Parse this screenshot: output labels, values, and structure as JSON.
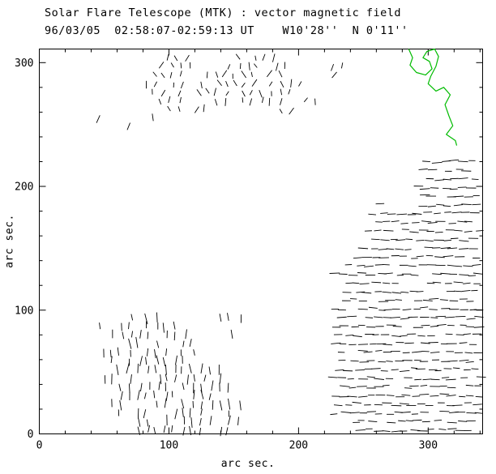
{
  "chart": {
    "title": "Solar Flare Telescope (MTK) : vector magnetic field",
    "subtitle": "96/03/05  02:58:07-02:59:13 UT    W10'28''  N 0'11''",
    "xlabel": "arc sec.",
    "ylabel": "arc sec."
  },
  "chart_data": {
    "type": "quiver",
    "title": "Solar Flare Telescope (MTK) : vector magnetic field",
    "subtitle": "96/03/05  02:58:07-02:59:13 UT    W10'28''  N 0'11''",
    "xlabel": "arc sec.",
    "ylabel": "arc sec.",
    "x_range": [
      0,
      342
    ],
    "y_range": [
      0,
      311
    ],
    "x_ticks": [
      0,
      100,
      200,
      300
    ],
    "y_ticks": [
      0,
      100,
      200,
      300
    ],
    "minor_tick_interval": 20,
    "grid": false,
    "axes_color": "#000000",
    "vector_color": "#000000",
    "contour_color": "#00bb00",
    "clusters": [
      {
        "name": "right-plage-horizontal-field",
        "seed": 42,
        "step": 7,
        "angle": 0,
        "jitter": 7,
        "len_min": 5,
        "len_max": 8,
        "prob": 0.93,
        "rows": [
          {
            "y": 220,
            "runs": [
              [
                300,
                340
              ]
            ]
          },
          {
            "y": 213,
            "runs": [
              [
                296,
                340
              ]
            ]
          },
          {
            "y": 206,
            "runs": [
              [
                300,
                340
              ]
            ]
          },
          {
            "y": 199,
            "runs": [
              [
                292,
                340
              ]
            ]
          },
          {
            "y": 192,
            "runs": [
              [
                296,
                340
              ]
            ]
          },
          {
            "y": 185,
            "runs": [
              [
                262,
                274
              ],
              [
                288,
                340
              ]
            ]
          },
          {
            "y": 178,
            "runs": [
              [
                258,
                340
              ]
            ]
          },
          {
            "y": 171,
            "runs": [
              [
                262,
                340
              ]
            ]
          },
          {
            "y": 164,
            "runs": [
              [
                254,
                340
              ]
            ]
          },
          {
            "y": 157,
            "runs": [
              [
                258,
                340
              ]
            ]
          },
          {
            "y": 150,
            "runs": [
              [
                250,
                340
              ]
            ]
          },
          {
            "y": 143,
            "runs": [
              [
                246,
                340
              ]
            ]
          },
          {
            "y": 136,
            "runs": [
              [
                240,
                340
              ]
            ]
          },
          {
            "y": 129,
            "runs": [
              [
                228,
                340
              ]
            ]
          },
          {
            "y": 122,
            "runs": [
              [
                238,
                340
              ]
            ]
          },
          {
            "y": 115,
            "runs": [
              [
                232,
                340
              ]
            ]
          },
          {
            "y": 108,
            "runs": [
              [
                236,
                340
              ]
            ]
          },
          {
            "y": 101,
            "runs": [
              [
                228,
                340
              ]
            ]
          },
          {
            "y": 94,
            "runs": [
              [
                234,
                340
              ]
            ]
          },
          {
            "y": 87,
            "runs": [
              [
                228,
                340
              ]
            ]
          },
          {
            "y": 80,
            "runs": [
              [
                232,
                340
              ]
            ]
          },
          {
            "y": 73,
            "runs": [
              [
                228,
                340
              ]
            ]
          },
          {
            "y": 66,
            "runs": [
              [
                234,
                340
              ]
            ]
          },
          {
            "y": 59,
            "runs": [
              [
                228,
                340
              ]
            ]
          },
          {
            "y": 52,
            "runs": [
              [
                232,
                340
              ]
            ]
          },
          {
            "y": 45,
            "runs": [
              [
                228,
                340
              ]
            ]
          },
          {
            "y": 38,
            "runs": [
              [
                234,
                340
              ]
            ]
          },
          {
            "y": 31,
            "runs": [
              [
                228,
                340
              ]
            ]
          },
          {
            "y": 24,
            "runs": [
              [
                232,
                340
              ]
            ]
          },
          {
            "y": 17,
            "runs": [
              [
                228,
                340
              ]
            ]
          },
          {
            "y": 10,
            "runs": [
              [
                236,
                340
              ]
            ]
          },
          {
            "y": 3,
            "runs": [
              [
                240,
                332
              ]
            ]
          }
        ]
      },
      {
        "name": "lower-left-vertical-field",
        "seed": 7,
        "step": 7,
        "angle": 90,
        "jitter": 14,
        "len_min": 5,
        "len_max": 9,
        "prob": 0.82,
        "rows": [
          {
            "y": 94,
            "runs": [
              [
                70,
                96
              ],
              [
                140,
                157
              ]
            ]
          },
          {
            "y": 87,
            "runs": [
              [
                48,
                52
              ],
              [
                62,
                110
              ]
            ]
          },
          {
            "y": 80,
            "runs": [
              [
                56,
                112
              ],
              [
                150,
                154
              ]
            ]
          },
          {
            "y": 73,
            "runs": [
              [
                62,
                118
              ]
            ]
          },
          {
            "y": 66,
            "runs": [
              [
                48,
                126
              ]
            ]
          },
          {
            "y": 59,
            "runs": [
              [
                56,
                132
              ]
            ]
          },
          {
            "y": 52,
            "runs": [
              [
                62,
                140
              ]
            ]
          },
          {
            "y": 45,
            "runs": [
              [
                50,
                146
              ]
            ]
          },
          {
            "y": 38,
            "runs": [
              [
                56,
                148
              ]
            ]
          },
          {
            "y": 31,
            "runs": [
              [
                62,
                152
              ]
            ]
          },
          {
            "y": 24,
            "runs": [
              [
                56,
                154
              ]
            ]
          },
          {
            "y": 17,
            "runs": [
              [
                62,
                150
              ]
            ]
          },
          {
            "y": 10,
            "runs": [
              [
                70,
                156
              ]
            ]
          },
          {
            "y": 3,
            "runs": [
              [
                76,
                148
              ]
            ]
          }
        ]
      },
      {
        "name": "upper-middle-mixed-field",
        "seed": 99,
        "step": 7,
        "angle": 90,
        "jitter": 40,
        "len_min": 4,
        "len_max": 7,
        "prob": 0.72,
        "rows": [
          {
            "y": 304,
            "runs": [
              [
                100,
                114
              ],
              [
                152,
                186
              ]
            ]
          },
          {
            "y": 297,
            "runs": [
              [
                94,
                120
              ],
              [
                140,
                192
              ],
              [
                226,
                238
              ]
            ]
          },
          {
            "y": 290,
            "runs": [
              [
                88,
                198
              ],
              [
                226,
                236
              ]
            ]
          },
          {
            "y": 283,
            "runs": [
              [
                82,
                202
              ]
            ]
          },
          {
            "y": 276,
            "runs": [
              [
                88,
                194
              ]
            ]
          },
          {
            "y": 269,
            "runs": [
              [
                94,
                186
              ],
              [
                206,
                214
              ]
            ]
          },
          {
            "y": 262,
            "runs": [
              [
                100,
                132
              ],
              [
                186,
                196
              ]
            ]
          },
          {
            "y": 255,
            "runs": [
              [
                44,
                46
              ],
              [
                86,
                92
              ],
              [
                104,
                110
              ]
            ]
          },
          {
            "y": 248,
            "runs": [
              [
                70,
                72
              ]
            ]
          }
        ]
      }
    ],
    "contours": [
      {
        "name": "neutral-line-contour",
        "points": [
          [
            285,
            311
          ],
          [
            288,
            304
          ],
          [
            286,
            298
          ],
          [
            291,
            292
          ],
          [
            298,
            290
          ],
          [
            303,
            295
          ],
          [
            301,
            301
          ],
          [
            296,
            304
          ],
          [
            299,
            309
          ],
          [
            305,
            311
          ],
          [
            308,
            305
          ],
          [
            306,
            297
          ],
          [
            302,
            289
          ],
          [
            300,
            283
          ],
          [
            306,
            277
          ],
          [
            312,
            280
          ],
          [
            317,
            274
          ],
          [
            313,
            266
          ],
          [
            316,
            257
          ],
          [
            319,
            249
          ],
          [
            314,
            242
          ],
          [
            321,
            237
          ],
          [
            322,
            233
          ]
        ]
      }
    ]
  }
}
